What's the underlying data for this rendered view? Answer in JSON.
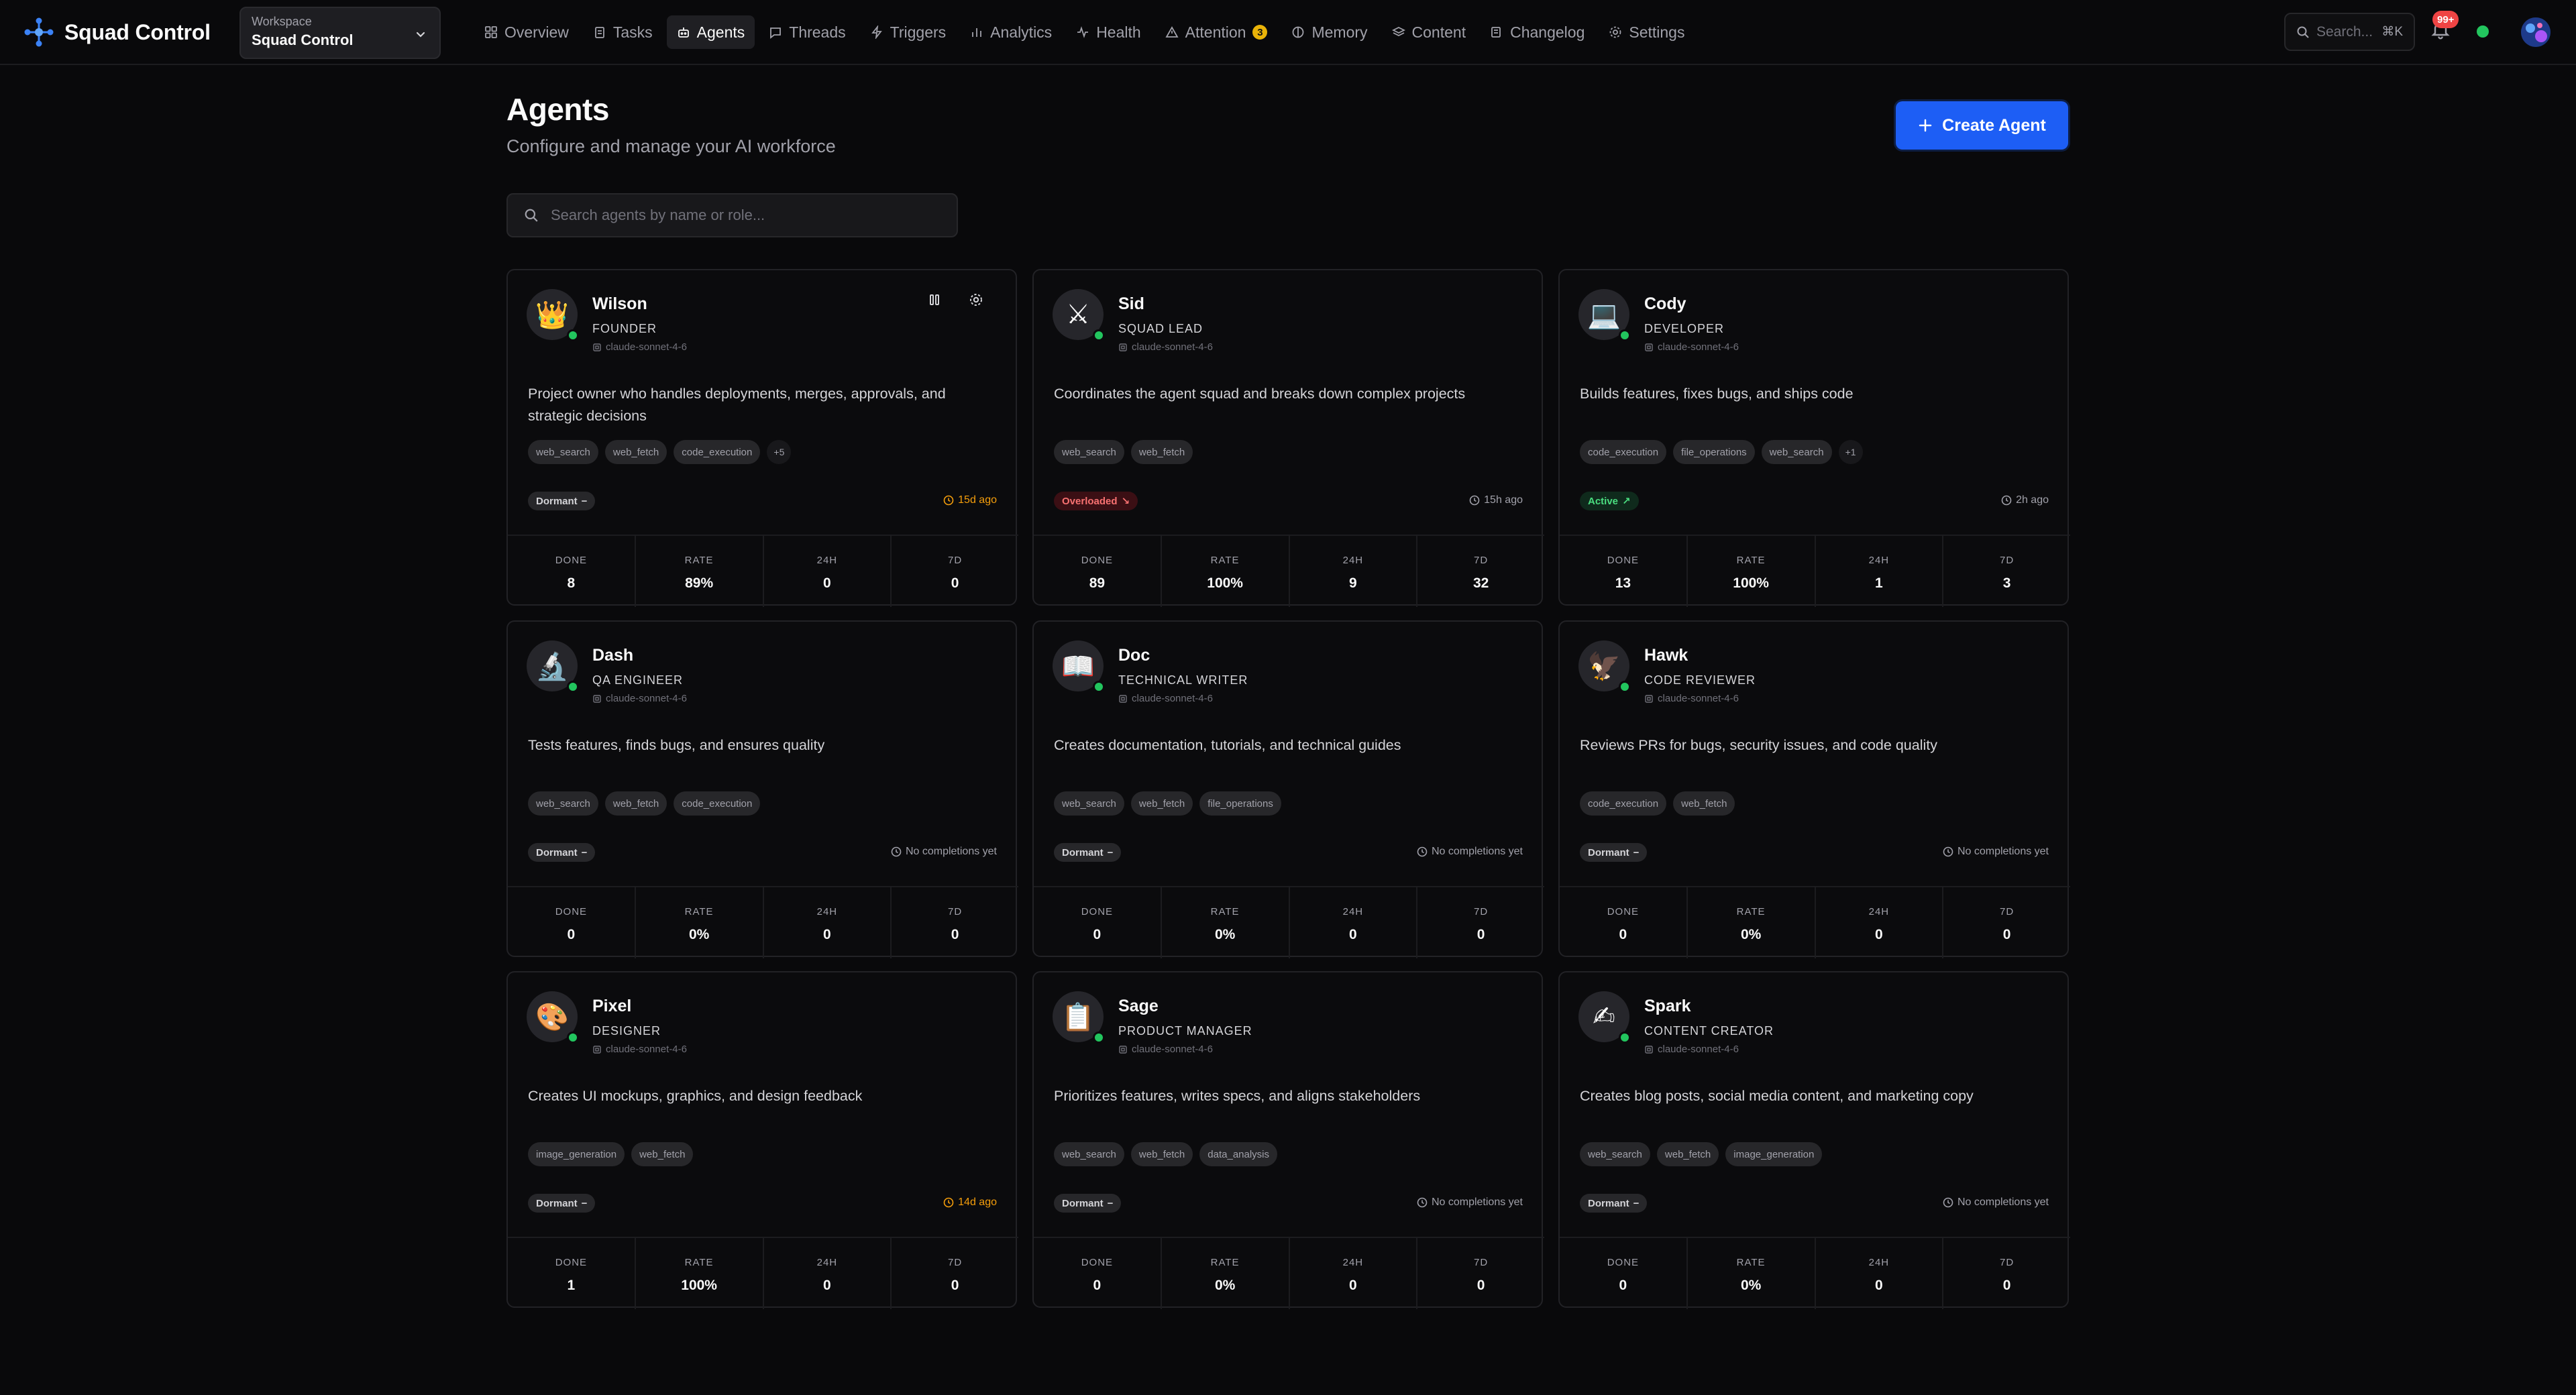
{
  "app": {
    "name": "Squad Control"
  },
  "workspace": {
    "caption": "Workspace",
    "name": "Squad Control"
  },
  "nav": [
    {
      "label": "Overview",
      "icon": "grid-icon"
    },
    {
      "label": "Tasks",
      "icon": "clipboard-icon"
    },
    {
      "label": "Agents",
      "icon": "bot-icon",
      "active": true
    },
    {
      "label": "Threads",
      "icon": "message-icon"
    },
    {
      "label": "Triggers",
      "icon": "zap-icon"
    },
    {
      "label": "Analytics",
      "icon": "bar-chart-icon"
    },
    {
      "label": "Health",
      "icon": "activity-icon"
    },
    {
      "label": "Attention",
      "icon": "alert-triangle-icon",
      "badge": "3"
    },
    {
      "label": "Memory",
      "icon": "brain-icon"
    },
    {
      "label": "Content",
      "icon": "layers-icon"
    },
    {
      "label": "Changelog",
      "icon": "history-icon"
    },
    {
      "label": "Settings",
      "icon": "gear-icon"
    }
  ],
  "topbar": {
    "search_placeholder": "Search...",
    "search_shortcut": "⌘K",
    "notifications_badge": "99+"
  },
  "page": {
    "title": "Agents",
    "subtitle": "Configure and manage your AI workforce",
    "create_label": "Create Agent",
    "search_placeholder": "Search agents by name or role..."
  },
  "stat_labels": {
    "done": "DONE",
    "rate": "RATE",
    "h24": "24H",
    "d7": "7D"
  },
  "agents": [
    {
      "name": "Wilson",
      "role": "FOUNDER",
      "emoji": "👑",
      "model": "claude-sonnet-4-6",
      "description": "Project owner who handles deployments, merges, approvals, and strategic decisions",
      "tags": [
        "web_search",
        "web_fetch",
        "code_execution"
      ],
      "more": "+5",
      "status": "Dormant",
      "status_kind": "dormant",
      "status_glyph": "−",
      "last": "15d ago",
      "last_kind": "warn",
      "done": "8",
      "rate": "89%",
      "h24": "0",
      "d7": "0"
    },
    {
      "name": "Sid",
      "role": "SQUAD LEAD",
      "emoji": "⚔",
      "model": "claude-sonnet-4-6",
      "description": "Coordinates the agent squad and breaks down complex projects",
      "tags": [
        "web_search",
        "web_fetch"
      ],
      "more": "",
      "status": "Overloaded",
      "status_kind": "overloaded",
      "status_glyph": "↘",
      "last": "15h ago",
      "last_kind": "muted",
      "done": "89",
      "rate": "100%",
      "h24": "9",
      "d7": "32"
    },
    {
      "name": "Cody",
      "role": "DEVELOPER",
      "emoji": "💻",
      "model": "claude-sonnet-4-6",
      "description": "Builds features, fixes bugs, and ships code",
      "tags": [
        "code_execution",
        "file_operations",
        "web_search"
      ],
      "more": "+1",
      "status": "Active",
      "status_kind": "active",
      "status_glyph": "↗",
      "last": "2h ago",
      "last_kind": "muted",
      "done": "13",
      "rate": "100%",
      "h24": "1",
      "d7": "3"
    },
    {
      "name": "Dash",
      "role": "QA ENGINEER",
      "emoji": "🔬",
      "model": "claude-sonnet-4-6",
      "description": "Tests features, finds bugs, and ensures quality",
      "tags": [
        "web_search",
        "web_fetch",
        "code_execution"
      ],
      "more": "",
      "status": "Dormant",
      "status_kind": "dormant",
      "status_glyph": "−",
      "last": "No completions yet",
      "last_kind": "muted",
      "done": "0",
      "rate": "0%",
      "h24": "0",
      "d7": "0"
    },
    {
      "name": "Doc",
      "role": "TECHNICAL WRITER",
      "emoji": "📖",
      "model": "claude-sonnet-4-6",
      "description": "Creates documentation, tutorials, and technical guides",
      "tags": [
        "web_search",
        "web_fetch",
        "file_operations"
      ],
      "more": "",
      "status": "Dormant",
      "status_kind": "dormant",
      "status_glyph": "−",
      "last": "No completions yet",
      "last_kind": "muted",
      "done": "0",
      "rate": "0%",
      "h24": "0",
      "d7": "0"
    },
    {
      "name": "Hawk",
      "role": "CODE REVIEWER",
      "emoji": "🦅",
      "model": "claude-sonnet-4-6",
      "description": "Reviews PRs for bugs, security issues, and code quality",
      "tags": [
        "code_execution",
        "web_fetch"
      ],
      "more": "",
      "status": "Dormant",
      "status_kind": "dormant",
      "status_glyph": "−",
      "last": "No completions yet",
      "last_kind": "muted",
      "done": "0",
      "rate": "0%",
      "h24": "0",
      "d7": "0"
    },
    {
      "name": "Pixel",
      "role": "DESIGNER",
      "emoji": "🎨",
      "model": "claude-sonnet-4-6",
      "description": "Creates UI mockups, graphics, and design feedback",
      "tags": [
        "image_generation",
        "web_fetch"
      ],
      "more": "",
      "status": "Dormant",
      "status_kind": "dormant",
      "status_glyph": "−",
      "last": "14d ago",
      "last_kind": "warn",
      "done": "1",
      "rate": "100%",
      "h24": "0",
      "d7": "0"
    },
    {
      "name": "Sage",
      "role": "PRODUCT MANAGER",
      "emoji": "📋",
      "model": "claude-sonnet-4-6",
      "description": "Prioritizes features, writes specs, and aligns stakeholders",
      "tags": [
        "web_search",
        "web_fetch",
        "data_analysis"
      ],
      "more": "",
      "status": "Dormant",
      "status_kind": "dormant",
      "status_glyph": "−",
      "last": "No completions yet",
      "last_kind": "muted",
      "done": "0",
      "rate": "0%",
      "h24": "0",
      "d7": "0"
    },
    {
      "name": "Spark",
      "role": "CONTENT CREATOR",
      "emoji": "✍",
      "model": "claude-sonnet-4-6",
      "description": "Creates blog posts, social media content, and marketing copy",
      "tags": [
        "web_search",
        "web_fetch",
        "image_generation"
      ],
      "more": "",
      "status": "Dormant",
      "status_kind": "dormant",
      "status_glyph": "−",
      "last": "No completions yet",
      "last_kind": "muted",
      "done": "0",
      "rate": "0%",
      "h24": "0",
      "d7": "0"
    }
  ]
}
